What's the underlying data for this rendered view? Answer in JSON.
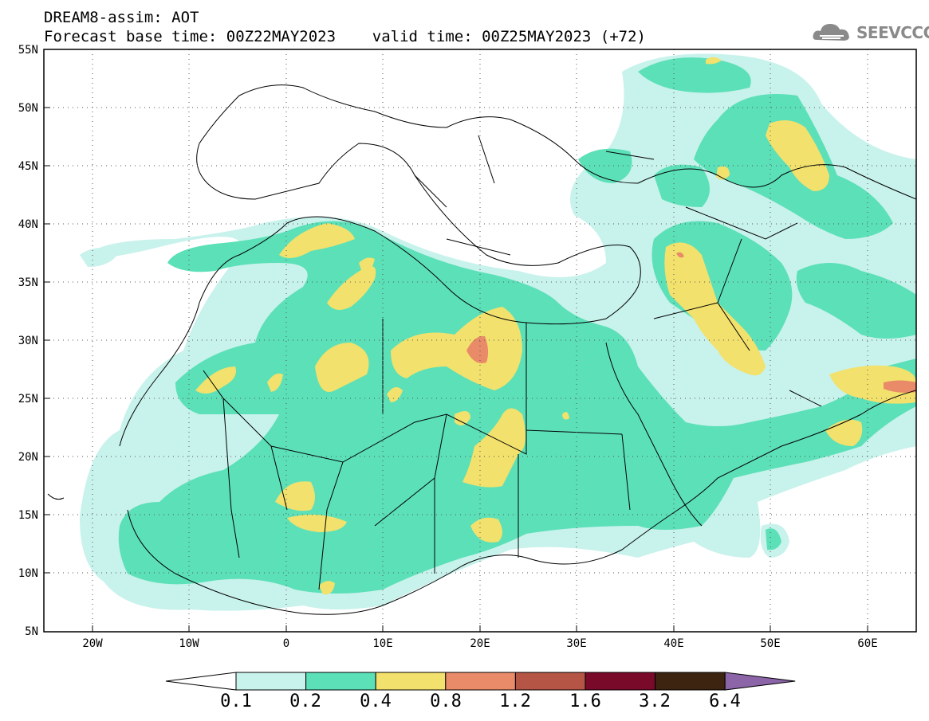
{
  "header": {
    "title_line1": "DREAM8-assim: AOT",
    "title_line2": "Forecast base time: 00Z22MAY2023    valid time: 00Z25MAY2023 (+72)",
    "logo_text": "SEEVCCC",
    "logo_icon": "cloud-icon"
  },
  "map": {
    "lat_labels": [
      "55N",
      "50N",
      "45N",
      "40N",
      "35N",
      "30N",
      "25N",
      "20N",
      "15N",
      "10N",
      "5N"
    ],
    "lon_labels": [
      "20W",
      "10W",
      "0",
      "10E",
      "20E",
      "30E",
      "40E",
      "50E",
      "60E"
    ],
    "lat_range": [
      5,
      55
    ],
    "lon_range": [
      -25,
      65
    ],
    "grid": true,
    "background": "#ffffff"
  },
  "colorbar": {
    "labels": [
      "0.1",
      "0.2",
      "0.4",
      "0.8",
      "1.2",
      "1.6",
      "3.2",
      "6.4"
    ],
    "colors": [
      "#c8f2ec",
      "#5ce0b8",
      "#f2e16c",
      "#e98b68",
      "#b55545",
      "#7a0a2a",
      "#3c2410",
      "#8c64a8"
    ],
    "below_color": "#ffffff"
  }
}
